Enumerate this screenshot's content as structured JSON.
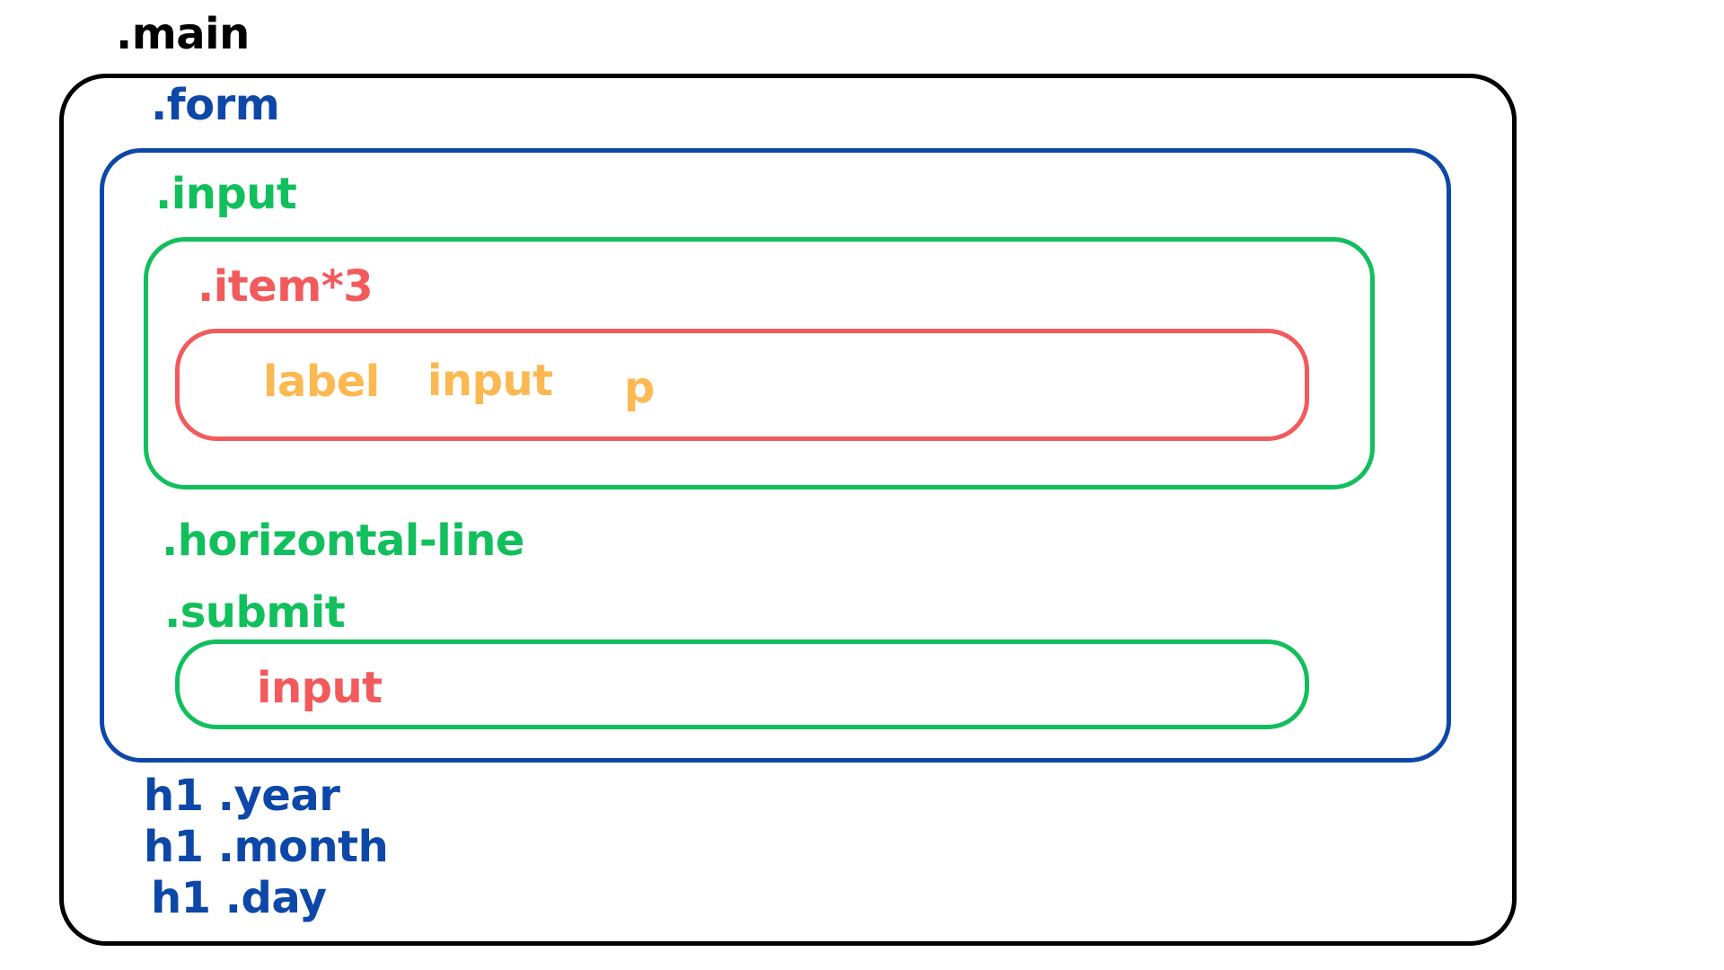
{
  "colors": {
    "main": "#000000",
    "form": "#0d47a8",
    "input_group": "#11bf5c",
    "item": "#f25a5c",
    "field": "#fcb951"
  },
  "labels": {
    "main": ".main",
    "form": ".form",
    "input_group": ".input",
    "item": ".item*3",
    "item_label": "label",
    "item_input": "input",
    "item_p": "p",
    "horizontal_line": ".horizontal-line",
    "submit": ".submit",
    "submit_input": "input",
    "year": "h1 .year",
    "month": "h1 .month",
    "day": "h1 .day"
  }
}
